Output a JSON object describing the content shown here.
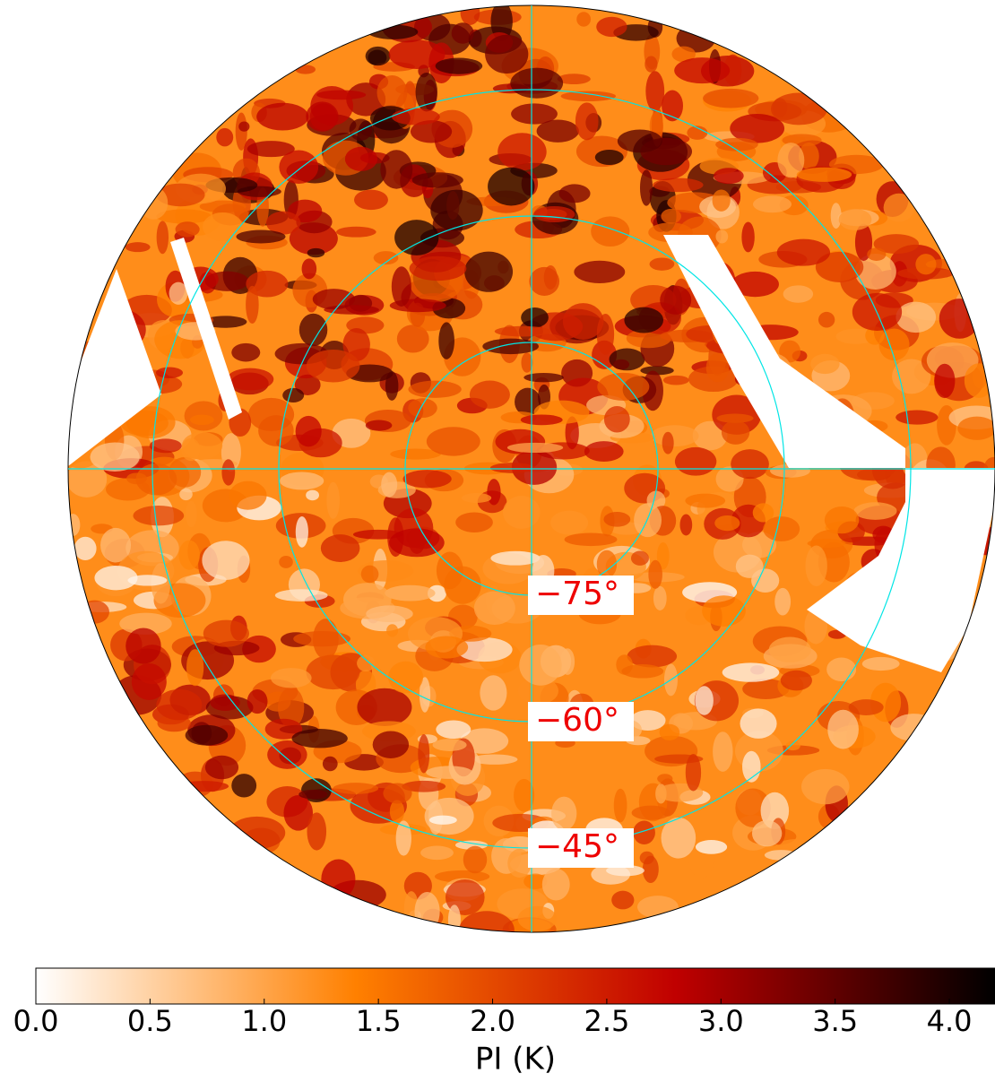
{
  "chart_data": {
    "type": "map",
    "parallels": [
      {
        "value": -75,
        "label": "−75°"
      },
      {
        "value": -60,
        "label": "−60°"
      },
      {
        "value": -45,
        "label": "−45°"
      }
    ],
    "graticule_color": "#00e5e5",
    "label_color": "#ee0000",
    "colorbar": {
      "label": "PI (K)",
      "lim": [
        0,
        4.2
      ],
      "ticks": [
        {
          "value": 0,
          "label": "0.0"
        },
        0.5,
        {
          "value": 1,
          "label": "1.0"
        },
        1.5,
        {
          "value": 2,
          "label": "2.0"
        },
        2.5,
        {
          "value": 3,
          "label": "3.0"
        },
        3.5,
        {
          "value": 4,
          "label": "4.0"
        }
      ],
      "colors": [
        "#ffffff",
        "#ff8000",
        "#c00000",
        "#000000"
      ]
    }
  }
}
